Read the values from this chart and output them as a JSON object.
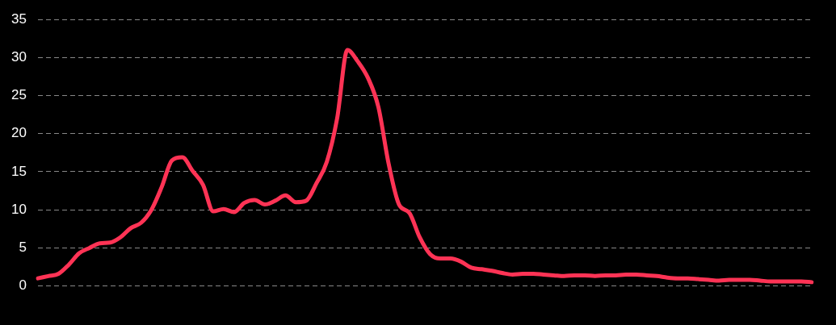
{
  "chart_data": {
    "type": "line",
    "categories": [
      null,
      null,
      null,
      null,
      null,
      null,
      null,
      null,
      null,
      null,
      null,
      null,
      null,
      null,
      null,
      null,
      null,
      null,
      null,
      null,
      null,
      null,
      null,
      null,
      null,
      null,
      null,
      null,
      null,
      null,
      null,
      null,
      null,
      null,
      null,
      null,
      null,
      null,
      null,
      null,
      null,
      null,
      null,
      null,
      null,
      null,
      null,
      null,
      null,
      null,
      null,
      null,
      null,
      null,
      null,
      null,
      null,
      null,
      null,
      null,
      null,
      null,
      null,
      null,
      null,
      null,
      null,
      null,
      null,
      null,
      null,
      null,
      null,
      null,
      null,
      null
    ],
    "series": [
      {
        "color": "#ff3355",
        "values": [
          1.0,
          1.3,
          1.6,
          2.8,
          4.3,
          5.0,
          5.6,
          5.7,
          6.4,
          7.6,
          8.3,
          10.0,
          13.0,
          16.5,
          16.9,
          15.1,
          13.3,
          9.8,
          10.1,
          9.7,
          10.9,
          11.3,
          10.7,
          11.2,
          11.9,
          11.0,
          11.2,
          13.5,
          16.3,
          22,
          31.0,
          29.5,
          27.3,
          23.5,
          16,
          10.7,
          9.6,
          6.4,
          4.2,
          3.6,
          3.6,
          3.2,
          2.4,
          2.2,
          2.0,
          1.7,
          1.5,
          1.6,
          1.6,
          1.5,
          1.4,
          1.3,
          1.4,
          1.4,
          1.3,
          1.4,
          1.4,
          1.5,
          1.5,
          1.4,
          1.3,
          1.1,
          1.0,
          1.0,
          0.9,
          0.8,
          0.7,
          0.8,
          0.8,
          0.8,
          0.7,
          0.6,
          0.6,
          0.6,
          0.6,
          0.5
        ]
      }
    ],
    "ylim": [
      0,
      35
    ],
    "yticks": [
      0,
      5,
      10,
      15,
      20,
      25,
      30,
      35
    ],
    "grid": "y",
    "legend": false,
    "marker": "none",
    "line_style": "solid"
  }
}
